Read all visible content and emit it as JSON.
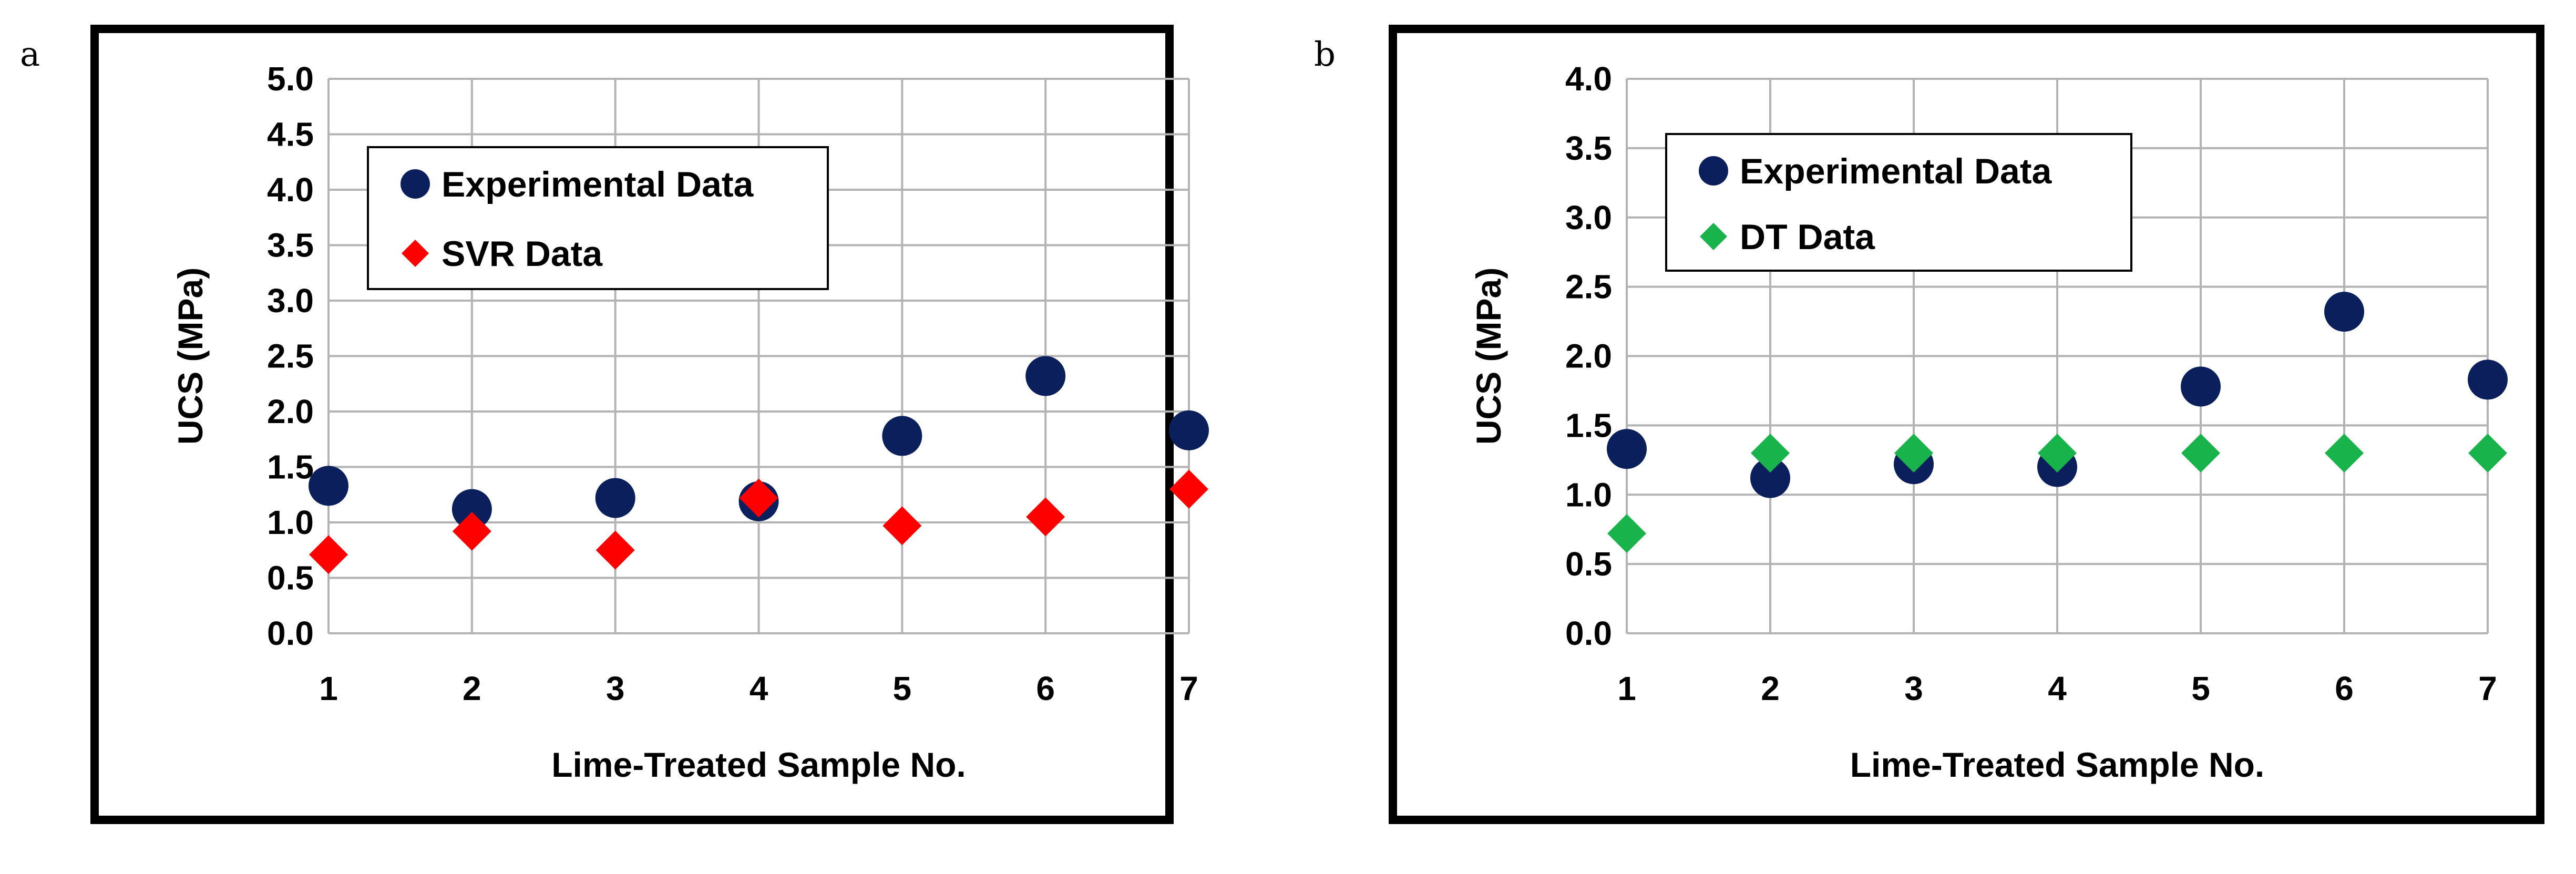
{
  "panels": [
    {
      "letter": "a",
      "chart_data": {
        "type": "scatter",
        "title": "",
        "xlabel": "Lime-Treated Sample No.",
        "ylabel": "UCS (MPa)",
        "xlim": [
          1,
          7
        ],
        "ylim": [
          0,
          5
        ],
        "x_ticks": [
          "1",
          "2",
          "3",
          "4",
          "5",
          "6",
          "7"
        ],
        "y_ticks": [
          "0.0",
          "0.5",
          "1.0",
          "1.5",
          "2.0",
          "2.5",
          "3.0",
          "3.5",
          "4.0",
          "4.5",
          "5.0"
        ],
        "grid": true,
        "legend_position": "top-left",
        "series": [
          {
            "name": "Experimental Data",
            "marker": "circle",
            "color": "#0b1f5c",
            "x": [
              1,
              2,
              3,
              4,
              5,
              6,
              7
            ],
            "y": [
              1.33,
              1.12,
              1.22,
              1.19,
              1.78,
              2.32,
              1.83
            ]
          },
          {
            "name": "SVR Data",
            "marker": "diamond",
            "color": "#ff0000",
            "x": [
              1,
              2,
              3,
              4,
              5,
              6,
              7
            ],
            "y": [
              0.71,
              0.92,
              0.75,
              1.22,
              0.97,
              1.05,
              1.3
            ]
          }
        ]
      }
    },
    {
      "letter": "b",
      "chart_data": {
        "type": "scatter",
        "title": "",
        "xlabel": "Lime-Treated Sample No.",
        "ylabel": "UCS (MPa)",
        "xlim": [
          1,
          7
        ],
        "ylim": [
          0,
          4
        ],
        "x_ticks": [
          "1",
          "2",
          "3",
          "4",
          "5",
          "6",
          "7"
        ],
        "y_ticks": [
          "0.0",
          "0.5",
          "1.0",
          "1.5",
          "2.0",
          "2.5",
          "3.0",
          "3.5",
          "4.0"
        ],
        "grid": true,
        "legend_position": "top-left",
        "series": [
          {
            "name": "Experimental Data",
            "marker": "circle",
            "color": "#0b1f5c",
            "x": [
              1,
              2,
              3,
              4,
              5,
              6,
              7
            ],
            "y": [
              1.33,
              1.12,
              1.22,
              1.2,
              1.78,
              2.32,
              1.83
            ]
          },
          {
            "name": "DT Data",
            "marker": "diamond",
            "color": "#19b34c",
            "x": [
              1,
              2,
              3,
              4,
              5,
              6,
              7
            ],
            "y": [
              0.72,
              1.3,
              1.3,
              1.3,
              1.3,
              1.3,
              1.3
            ]
          }
        ]
      }
    }
  ]
}
